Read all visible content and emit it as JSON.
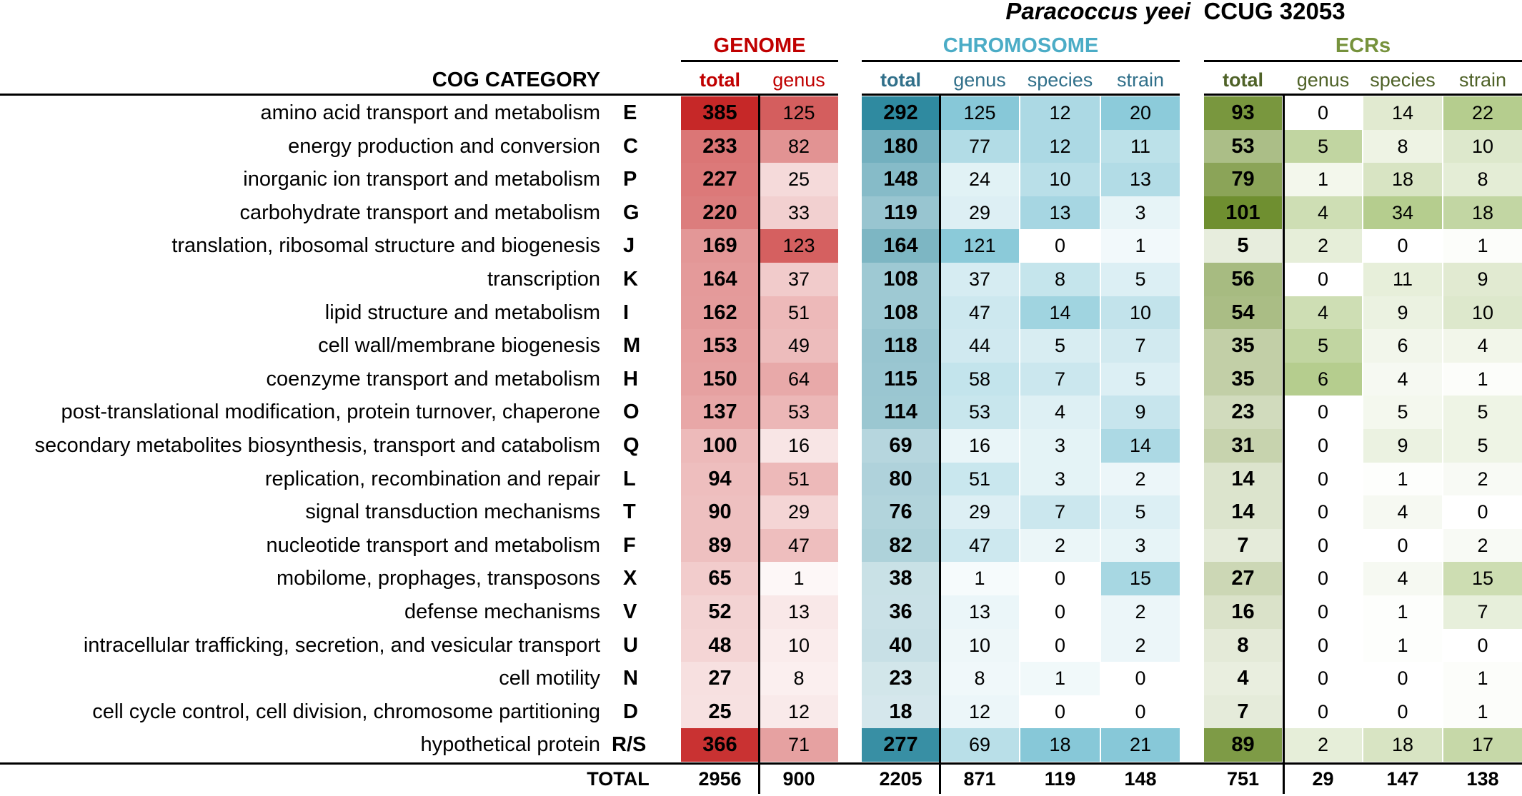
{
  "chart_data": {
    "type": "table",
    "title_italic": "Paracoccus yeei",
    "title_rest": "CCUG 32053",
    "row_header": "COG CATEGORY",
    "total_label": "TOTAL",
    "groups": [
      {
        "name": "GENOME",
        "color": "#c00000",
        "columns": [
          "total",
          "genus"
        ]
      },
      {
        "name": "CHROMOSOME",
        "color": "#4bacc6",
        "columns": [
          "total",
          "genus",
          "species",
          "strain"
        ]
      },
      {
        "name": "ECRs",
        "color": "#76923c",
        "columns": [
          "total",
          "genus",
          "species",
          "strain"
        ]
      }
    ],
    "rows": [
      {
        "label": "amino acid transport and metabolism",
        "code": "E",
        "values": [
          385,
          125,
          292,
          125,
          12,
          20,
          93,
          0,
          14,
          22
        ]
      },
      {
        "label": "energy production and conversion",
        "code": "C",
        "values": [
          233,
          82,
          180,
          77,
          12,
          11,
          53,
          5,
          8,
          10
        ]
      },
      {
        "label": "inorganic ion transport and metabolism",
        "code": "P",
        "values": [
          227,
          25,
          148,
          24,
          10,
          13,
          79,
          1,
          18,
          8
        ]
      },
      {
        "label": "carbohydrate transport and metabolism",
        "code": "G",
        "values": [
          220,
          33,
          119,
          29,
          13,
          3,
          101,
          4,
          34,
          18
        ]
      },
      {
        "label": "translation, ribosomal structure and biogenesis",
        "code": "J",
        "values": [
          169,
          123,
          164,
          121,
          0,
          1,
          5,
          2,
          0,
          1
        ]
      },
      {
        "label": "transcription",
        "code": "K",
        "values": [
          164,
          37,
          108,
          37,
          8,
          5,
          56,
          0,
          11,
          9
        ]
      },
      {
        "label": "lipid structure and metabolism",
        "code": "I",
        "values": [
          162,
          51,
          108,
          47,
          14,
          10,
          54,
          4,
          9,
          10
        ]
      },
      {
        "label": "cell wall/membrane biogenesis",
        "code": "M",
        "values": [
          153,
          49,
          118,
          44,
          5,
          7,
          35,
          5,
          6,
          4
        ]
      },
      {
        "label": "coenzyme transport and metabolism",
        "code": "H",
        "values": [
          150,
          64,
          115,
          58,
          7,
          5,
          35,
          6,
          4,
          1
        ]
      },
      {
        "label": "post-translational modification, protein turnover, chaperone",
        "code": "O",
        "values": [
          137,
          53,
          114,
          53,
          4,
          9,
          23,
          0,
          5,
          5
        ]
      },
      {
        "label": "secondary metabolites biosynthesis, transport and catabolism",
        "code": "Q",
        "values": [
          100,
          16,
          69,
          16,
          3,
          14,
          31,
          0,
          9,
          5
        ]
      },
      {
        "label": "replication, recombination and repair",
        "code": "L",
        "values": [
          94,
          51,
          80,
          51,
          3,
          2,
          14,
          0,
          1,
          2
        ]
      },
      {
        "label": "signal transduction mechanisms",
        "code": "T",
        "values": [
          90,
          29,
          76,
          29,
          7,
          5,
          14,
          0,
          4,
          0
        ]
      },
      {
        "label": "nucleotide transport and metabolism",
        "code": "F",
        "values": [
          89,
          47,
          82,
          47,
          2,
          3,
          7,
          0,
          0,
          2
        ]
      },
      {
        "label": "mobilome, prophages, transposons",
        "code": "X",
        "values": [
          65,
          1,
          38,
          1,
          0,
          15,
          27,
          0,
          4,
          15
        ]
      },
      {
        "label": "defense mechanisms",
        "code": "V",
        "values": [
          52,
          13,
          36,
          13,
          0,
          2,
          16,
          0,
          1,
          7
        ]
      },
      {
        "label": "intracellular trafficking, secretion, and vesicular transport",
        "code": "U",
        "values": [
          48,
          10,
          40,
          10,
          0,
          2,
          8,
          0,
          1,
          0
        ]
      },
      {
        "label": "cell motility",
        "code": "N",
        "values": [
          27,
          8,
          23,
          8,
          1,
          0,
          4,
          0,
          0,
          1
        ]
      },
      {
        "label": "cell cycle control, cell division, chromosome partitioning",
        "code": "D",
        "values": [
          25,
          12,
          18,
          12,
          0,
          0,
          7,
          0,
          0,
          1
        ]
      },
      {
        "label": "hypothetical protein",
        "code": "R/S",
        "values": [
          366,
          71,
          277,
          69,
          18,
          21,
          89,
          2,
          18,
          17
        ]
      }
    ],
    "totals": [
      2956,
      900,
      2205,
      871,
      119,
      148,
      751,
      29,
      147,
      138
    ]
  }
}
